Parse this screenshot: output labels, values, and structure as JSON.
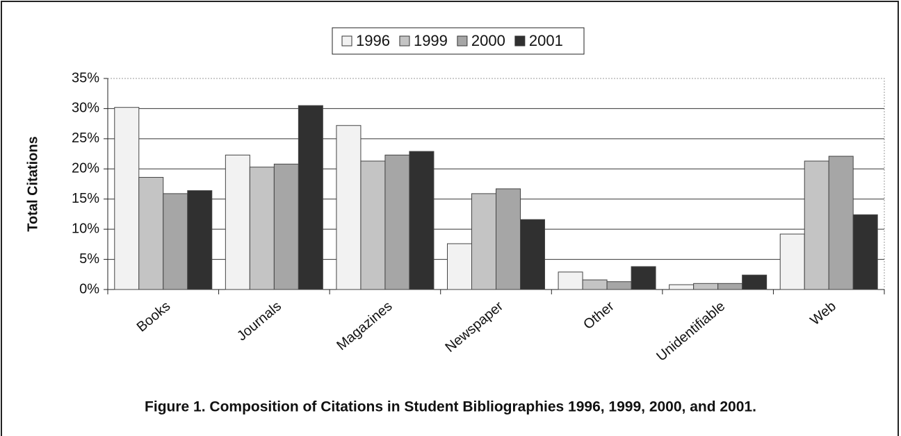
{
  "chart_data": {
    "type": "bar",
    "y_label": "Total Citations",
    "caption": "Figure 1. Composition of Citations in Student Bibliographies 1996, 1999, 2000, and 2001.",
    "categories": [
      "Books",
      "Journals",
      "Magazines",
      "Newspaper",
      "Other",
      "Unidentifiable",
      "Web"
    ],
    "series": [
      {
        "name": "1996",
        "color": "#f2f2f2",
        "values": [
          30.2,
          22.3,
          27.2,
          7.6,
          2.9,
          0.8,
          9.2
        ]
      },
      {
        "name": "1999",
        "color": "#c4c4c4",
        "values": [
          18.6,
          20.3,
          21.3,
          15.9,
          1.6,
          1.0,
          21.3
        ]
      },
      {
        "name": "2000",
        "color": "#a6a6a6",
        "values": [
          15.9,
          20.8,
          22.3,
          16.7,
          1.3,
          1.0,
          22.1
        ]
      },
      {
        "name": "2001",
        "color": "#303030",
        "values": [
          16.4,
          30.5,
          22.9,
          11.6,
          3.8,
          2.4,
          12.4
        ]
      }
    ],
    "ylim": [
      0,
      35
    ],
    "yticks": [
      {
        "value": 0,
        "label": "0%"
      },
      {
        "value": 5,
        "label": "5%"
      },
      {
        "value": 10,
        "label": "10%"
      },
      {
        "value": 15,
        "label": "15%"
      },
      {
        "value": 20,
        "label": "20%"
      },
      {
        "value": 25,
        "label": "25%"
      },
      {
        "value": 30,
        "label": "30%"
      },
      {
        "value": 35,
        "label": "35%"
      }
    ],
    "grid": true,
    "legend": "top"
  }
}
